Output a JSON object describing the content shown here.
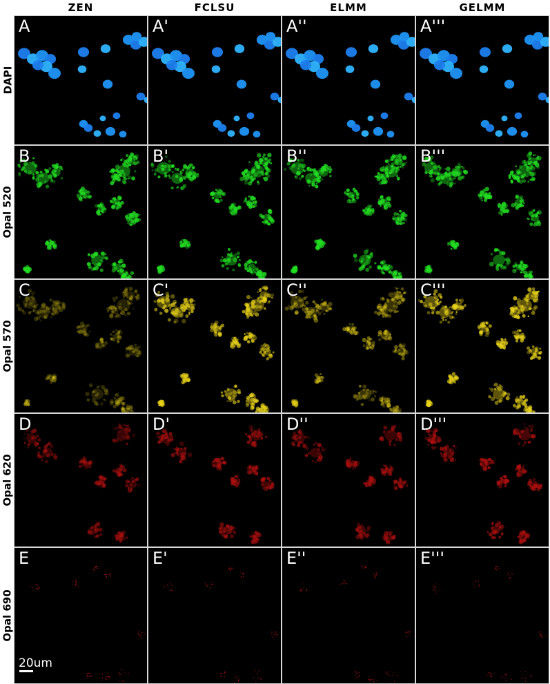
{
  "columns": [
    "ZEN",
    "FCLSU",
    "ELMM",
    "GELMM"
  ],
  "rows": [
    {
      "label": "DAPI",
      "color": "#1e8cff",
      "channel": "dapi",
      "panels": [
        "A",
        "A'",
        "A''",
        "A'''"
      ],
      "intensity": [
        1,
        1,
        1,
        1
      ]
    },
    {
      "label": "Opal 520",
      "color": "#22dd22",
      "channel": "opal520",
      "panels": [
        "B",
        "B'",
        "B''",
        "B'''"
      ],
      "intensity": [
        1,
        1,
        1,
        1
      ]
    },
    {
      "label": "Opal 570",
      "color": "#e8d21a",
      "channel": "opal570",
      "panels": [
        "C",
        "C'",
        "C''",
        "C'''"
      ],
      "intensity": [
        0.35,
        0.85,
        0.55,
        0.9
      ]
    },
    {
      "label": "Opal 620",
      "color": "#b01010",
      "channel": "opal620",
      "panels": [
        "D",
        "D'",
        "D''",
        "D'''"
      ],
      "intensity": [
        0.7,
        0.8,
        0.75,
        0.85
      ]
    },
    {
      "label": "Opal 690",
      "color": "#c01818",
      "channel": "opal690",
      "panels": [
        "E",
        "E'",
        "E''",
        "E'''"
      ],
      "intensity": [
        0.9,
        0.7,
        0.7,
        0.7
      ]
    }
  ],
  "scale_bar": {
    "label": "20um"
  }
}
